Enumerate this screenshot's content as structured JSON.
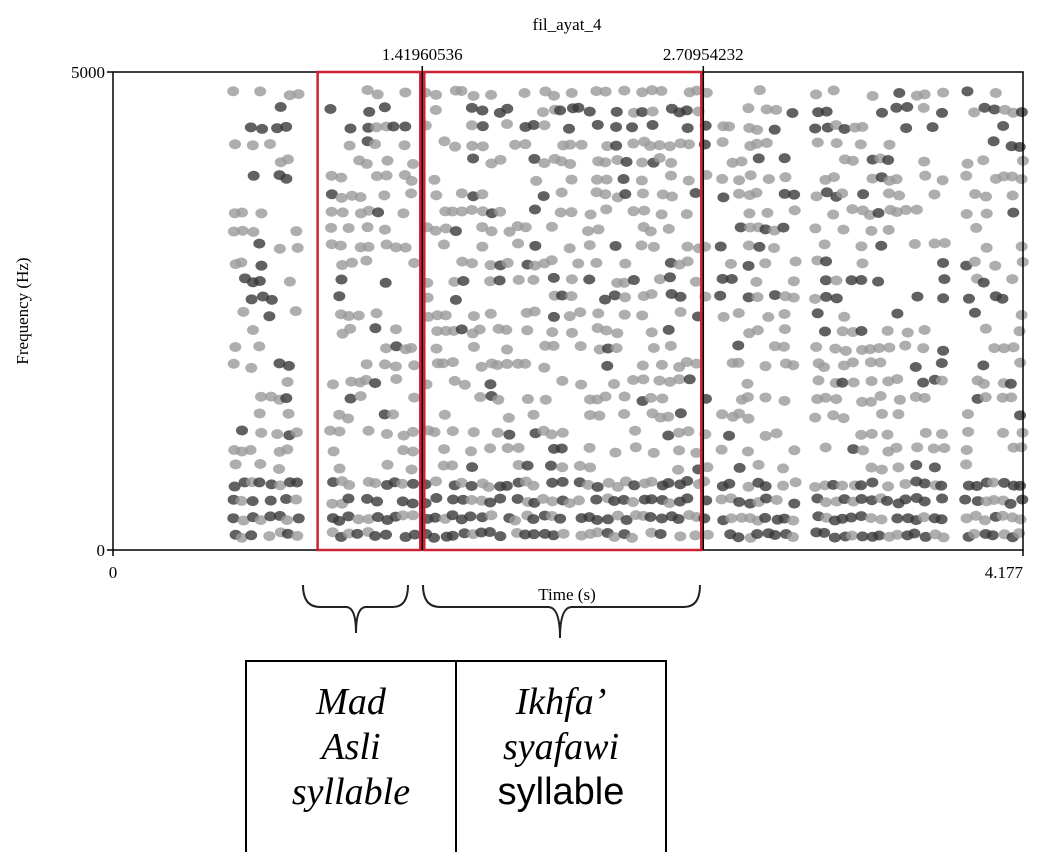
{
  "chart_data": {
    "type": "spectrogram",
    "title": "fil_ayat_4",
    "x_label": "Time (s)",
    "y_label": "Frequency (Hz)",
    "xlim": [
      0,
      4.177
    ],
    "ylim": [
      0,
      5000
    ],
    "xticks": [
      0,
      4.177
    ],
    "yticks": [
      0,
      5000
    ],
    "markers": [
      1.41960536,
      2.70954232
    ],
    "regions": [
      {
        "start": 0.93,
        "lines": [
          "Mad",
          "Asli",
          "syllable"
        ],
        "italic": [
          true,
          true,
          true
        ]
      },
      {
        "lines": [
          "Ikhfa’",
          "syafawi",
          "syllable"
        ],
        "italic": [
          true,
          true,
          false
        ]
      }
    ],
    "region_color": "#cc2233"
  }
}
